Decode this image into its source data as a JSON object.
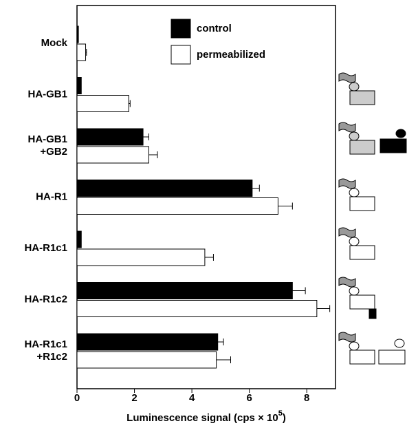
{
  "chart_data": {
    "type": "hbar",
    "categories": [
      "Mock",
      "HA-GB1",
      "HA-GB1\n+GB2",
      "HA-R1",
      "HA-R1c1",
      "HA-R1c2",
      "HA-R1c1\n+R1c2"
    ],
    "series": [
      {
        "name": "control",
        "color": "#000000",
        "values": [
          0.05,
          0.15,
          2.3,
          6.1,
          0.15,
          7.5,
          4.9
        ],
        "errors": [
          null,
          null,
          0.2,
          0.25,
          null,
          0.45,
          0.2
        ]
      },
      {
        "name": "permeabilized",
        "color": "#ffffff",
        "values": [
          0.3,
          1.8,
          2.5,
          7.0,
          4.45,
          8.35,
          4.85
        ],
        "errors": [
          0.03,
          0.05,
          0.3,
          0.5,
          0.3,
          0.45,
          0.5
        ]
      }
    ],
    "xlabel": "Luminescence signal (cps × 10",
    "xlabel_sup": "5",
    "xlabel_end": ")",
    "xlim": [
      0,
      9
    ],
    "xticks": [
      0,
      2,
      4,
      6,
      8
    ]
  }
}
